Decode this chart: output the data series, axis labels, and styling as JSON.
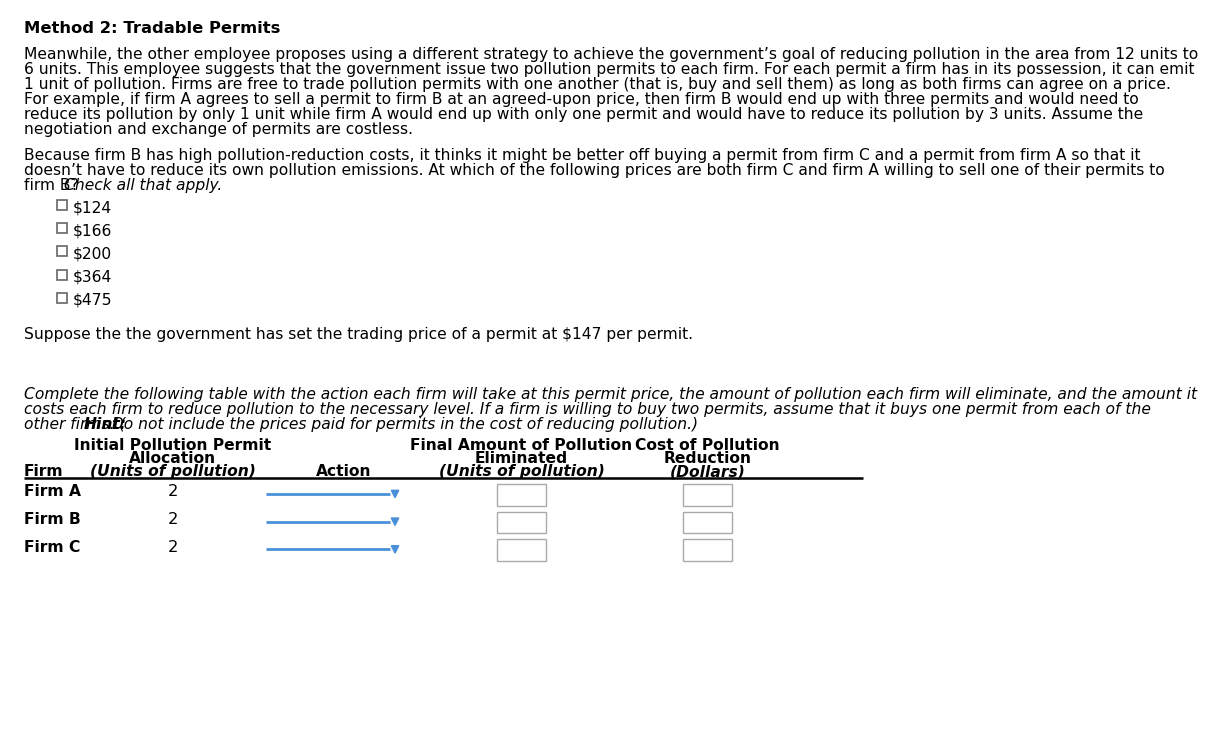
{
  "title": "Method 2: Tradable Permits",
  "p1_lines": [
    "Meanwhile, the other employee proposes using a different strategy to achieve the government’s goal of reducing pollution in the area from 12 units to",
    "6 units. This employee suggests that the government issue two pollution permits to each firm. For each permit a firm has in its possession, it can emit",
    "1 unit of pollution. Firms are free to trade pollution permits with one another (that is, buy and sell them) as long as both firms can agree on a price.",
    "For example, if firm A agrees to sell a permit to firm B at an agreed-upon price, then firm B would end up with three permits and would need to",
    "reduce its pollution by only 1 unit while firm A would end up with only one permit and would have to reduce its pollution by 3 units. Assume the",
    "negotiation and exchange of permits are costless."
  ],
  "p2_lines": [
    "Because firm B has high pollution-reduction costs, it thinks it might be better off buying a permit from firm C and a permit from firm A so that it",
    "doesn’t have to reduce its own pollution emissions. At which of the following prices are both firm C and firm A willing to sell one of their permits to",
    "firm B? "
  ],
  "p2_italic": "Check all that apply.",
  "checkboxes": [
    "$124",
    "$166",
    "$200",
    "$364",
    "$475"
  ],
  "p3": "Suppose the the government has set the trading price of a permit at $147 per permit.",
  "p4_line1": "Complete the following table with the action each firm will take at this permit price, the amount of pollution each firm will eliminate, and the amount it",
  "p4_line2": "costs each firm to reduce pollution to the necessary level. If a firm is willing to buy two permits, assume that it buys one permit from each of the",
  "p4_pre": "other firms. (",
  "p4_bold": "Hint:",
  "p4_post": " Do not include the prices paid for permits in the cost of reducing pollution.)",
  "th1a": "Initial Pollution Permit",
  "th1b": "Allocation",
  "th1c": "(Units of pollution)",
  "th2": "Action",
  "th3a": "Final Amount of Pollution",
  "th3b": "Eliminated",
  "th3c": "(Units of pollution)",
  "th4a": "Cost of Pollution",
  "th4b": "Reduction",
  "th4c": "(Dollars)",
  "th_firm": "Firm",
  "firms": [
    "Firm A",
    "Firm B",
    "Firm C"
  ],
  "allocations": [
    "2",
    "2",
    "2"
  ],
  "bg": "#ffffff",
  "tc": "#000000",
  "drop_color": "#4a90d9",
  "box_edge": "#aaaaaa"
}
